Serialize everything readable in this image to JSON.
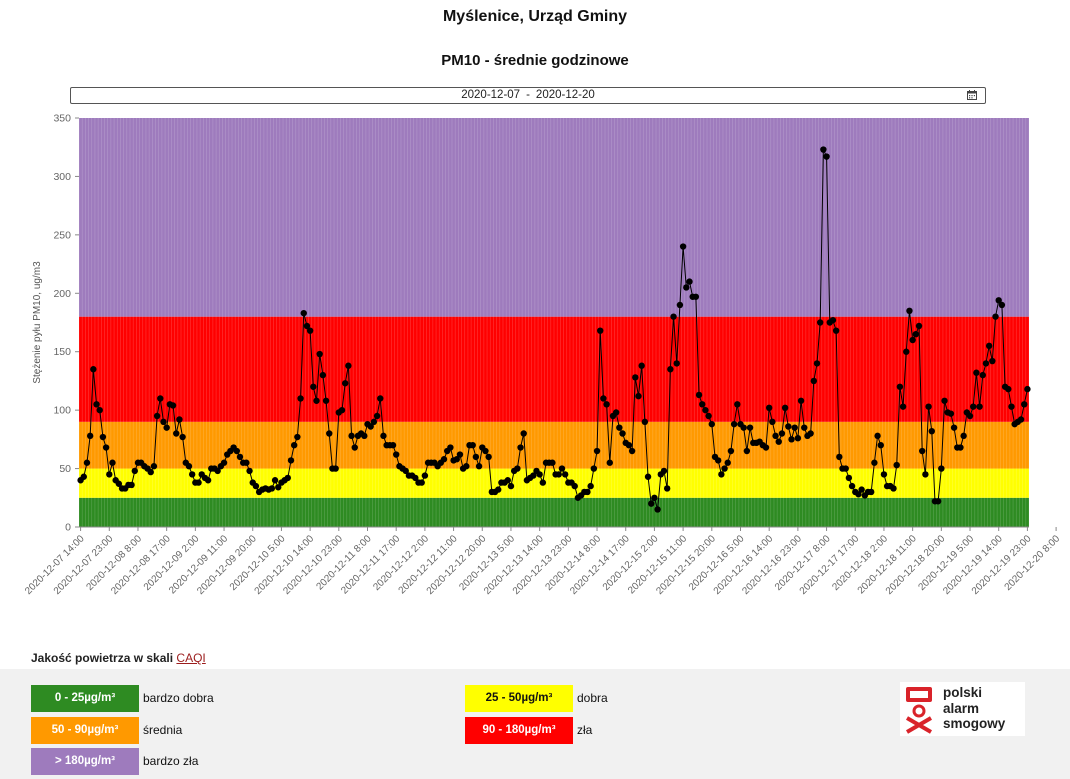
{
  "header": {
    "title": "Myślenice, Urząd Gminy",
    "subtitle": "PM10 - średnie godzinowe"
  },
  "date_filter": {
    "start": "2020-12-07",
    "separator": "-",
    "end": "2020-12-20",
    "icon": "calendar-icon"
  },
  "chart_data": {
    "type": "line",
    "title": "",
    "xlabel": "",
    "ylabel": "Stężenie pyłu PM10, ug/m3",
    "ylim": [
      0,
      350
    ],
    "yticks": [
      0,
      50,
      100,
      150,
      200,
      250,
      300,
      350
    ],
    "x_start": "2020-12-07 14:00",
    "x_step_hours": 3,
    "x_tick_labels": [
      "2020-12-07 14:00",
      "2020-12-07 23:00",
      "2020-12-08 8:00",
      "2020-12-08 17:00",
      "2020-12-09 2:00",
      "2020-12-09 11:00",
      "2020-12-09 20:00",
      "2020-12-10 5:00",
      "2020-12-10 14:00",
      "2020-12-10 23:00",
      "2020-12-11 8:00",
      "2020-12-11 17:00",
      "2020-12-12 2:00",
      "2020-12-12 11:00",
      "2020-12-12 20:00",
      "2020-12-13 5:00",
      "2020-12-13 14:00",
      "2020-12-13 23:00",
      "2020-12-14 8:00",
      "2020-12-14 17:00",
      "2020-12-15 2:00",
      "2020-12-15 11:00",
      "2020-12-15 20:00",
      "2020-12-16 5:00",
      "2020-12-16 14:00",
      "2020-12-16 23:00",
      "2020-12-17 8:00",
      "2020-12-17 17:00",
      "2020-12-18 2:00",
      "2020-12-18 11:00",
      "2020-12-18 20:00",
      "2020-12-19 5:00",
      "2020-12-19 14:00",
      "2020-12-19 23:00",
      "2020-12-20 8:00"
    ],
    "bands": [
      {
        "from": 0,
        "to": 25,
        "color": "#2e8b22"
      },
      {
        "from": 25,
        "to": 50,
        "color": "#ffff00"
      },
      {
        "from": 50,
        "to": 90,
        "color": "#ff9900"
      },
      {
        "from": 90,
        "to": 180,
        "color": "#ff0000"
      },
      {
        "from": 180,
        "to": 350,
        "color": "#9e7bbd"
      }
    ],
    "series": [
      {
        "color": "#000000",
        "values": [
          40,
          43,
          55,
          78,
          135,
          105,
          100,
          77,
          68,
          45,
          55,
          40,
          37,
          33,
          33,
          36,
          36,
          48,
          55,
          55,
          52,
          50,
          47,
          52,
          95,
          110,
          90,
          85,
          105,
          104,
          80,
          92,
          77,
          55,
          52,
          45,
          38,
          38,
          45,
          42,
          40,
          50,
          50,
          48,
          52,
          55,
          62,
          65,
          68,
          65,
          60,
          55,
          55,
          48,
          38,
          35,
          30,
          32,
          33,
          32,
          33,
          40,
          34,
          38,
          40,
          42,
          57,
          70,
          77,
          110,
          183,
          172,
          168,
          120,
          108,
          148,
          130,
          108,
          80,
          50,
          50,
          98,
          100,
          123,
          138,
          78,
          68,
          78,
          80,
          78,
          88,
          86,
          90,
          95,
          110,
          78,
          70,
          70,
          70,
          62,
          52,
          50,
          48,
          44,
          44,
          42,
          38,
          38,
          44,
          55,
          55,
          55,
          52,
          55,
          58,
          65,
          68,
          57,
          58,
          62,
          50,
          52,
          70,
          70,
          60,
          52,
          68,
          65,
          60,
          30,
          30,
          32,
          38,
          38,
          40,
          35,
          48,
          50,
          68,
          80,
          40,
          42,
          44,
          48,
          45,
          38,
          55,
          55,
          55,
          45,
          45,
          50,
          45,
          38,
          38,
          35,
          25,
          27,
          30,
          30,
          35,
          50,
          65,
          168,
          110,
          105,
          55,
          95,
          98,
          85,
          80,
          72,
          70,
          65,
          128,
          112,
          138,
          90,
          43,
          20,
          25,
          15,
          45,
          48,
          33,
          135,
          180,
          140,
          190,
          240,
          205,
          210,
          197,
          197,
          113,
          105,
          100,
          95,
          88,
          60,
          57,
          45,
          50,
          55,
          65,
          88,
          105,
          88,
          85,
          65,
          85,
          72,
          72,
          73,
          70,
          68,
          102,
          90,
          78,
          73,
          80,
          102,
          86,
          75,
          85,
          76,
          108,
          85,
          78,
          80,
          125,
          140,
          175,
          323,
          317,
          175,
          177,
          168,
          60,
          50,
          50,
          42,
          35,
          30,
          28,
          32,
          27,
          30,
          30,
          55,
          78,
          70,
          45,
          35,
          35,
          33,
          53,
          120,
          103,
          150,
          185,
          160,
          165,
          172,
          65,
          45,
          103,
          82,
          22,
          22,
          50,
          108,
          98,
          97,
          85,
          68,
          68,
          78,
          98,
          95,
          103,
          132,
          103,
          130,
          140,
          155,
          142,
          180,
          194,
          190,
          120,
          118,
          103,
          88,
          90,
          92,
          105,
          118
        ]
      }
    ]
  },
  "legend": {
    "title": "Jakość powietrza w skali",
    "link": "CAQI",
    "items": [
      {
        "range": "0 - 25µg/m³",
        "label": "bardzo dobra",
        "color": "#2e8b22"
      },
      {
        "range": "25 - 50µg/m³",
        "label": "dobra",
        "color": "#ffff00"
      },
      {
        "range": "50 - 90µg/m³",
        "label": "średnia",
        "color": "#ff9900"
      },
      {
        "range": "90 - 180µg/m³",
        "label": "zła",
        "color": "#ff0000"
      },
      {
        "range": "> 180µg/m³",
        "label": "bardzo zła",
        "color": "#9e7bbd"
      }
    ]
  },
  "logo": {
    "line1": "polski",
    "line2": "alarm",
    "line3": "smogowy",
    "color": "#d9232a"
  }
}
